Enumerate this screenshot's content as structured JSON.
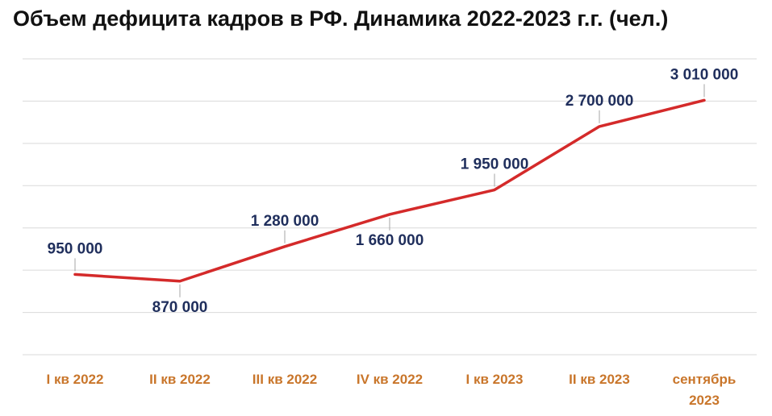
{
  "title": "Объем дефицита кадров в РФ. Динамика 2022-2023 г.г. (чел.)",
  "colors": {
    "line": "#d42a2a",
    "x_labels": "#c9762b",
    "data_labels": "#1f2e5c",
    "grid": "#d9d9d9"
  },
  "chart_data": {
    "type": "line",
    "title": "Объем дефицита кадров в РФ. Динамика 2022-2023 г.г. (чел.)",
    "categories": [
      [
        "I кв 2022"
      ],
      [
        "II кв 2022"
      ],
      [
        "III кв 2022"
      ],
      [
        "IV кв 2022"
      ],
      [
        "I кв 2023"
      ],
      [
        "II кв 2023"
      ],
      [
        "сентябрь",
        "2023"
      ]
    ],
    "series": [
      {
        "values": [
          950000,
          870000,
          1280000,
          1660000,
          1950000,
          2700000,
          3010000
        ]
      }
    ],
    "data_labels": [
      "950 000",
      "870 000",
      "1 280 000",
      "1 660 000",
      "1 950 000",
      "2 700 000",
      "3 010 000"
    ],
    "label_positions": [
      "above",
      "below",
      "above",
      "below",
      "above",
      "above",
      "above"
    ],
    "ylim": [
      0,
      3500000
    ],
    "grid": true,
    "legend": false
  }
}
